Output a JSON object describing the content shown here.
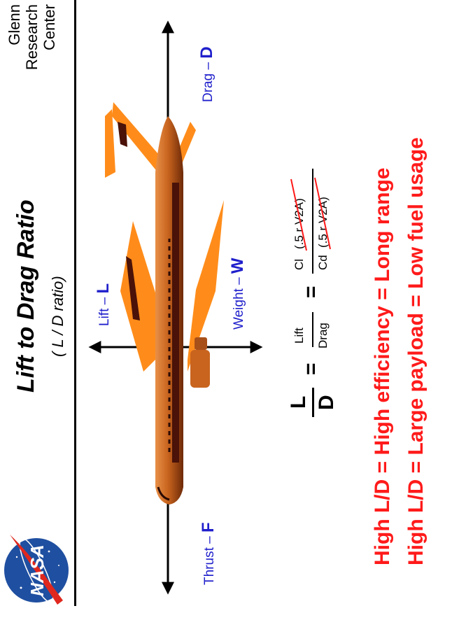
{
  "center_name": "Glenn Research Center",
  "title": "Lift  to  Drag  Ratio",
  "subtitle": "( L / D  ratio)",
  "forces": {
    "drag": {
      "word": "Drag",
      "symbol": "D"
    },
    "lift": {
      "word": "Lift",
      "symbol": "L"
    },
    "weight": {
      "word": "Weight",
      "symbol": "W"
    },
    "thrust": {
      "word": "Thrust",
      "symbol": "F"
    }
  },
  "equation": {
    "ld_num": "L",
    "ld_den": "D",
    "equals": "=",
    "word_num": "Lift",
    "word_den": "Drag",
    "coef_num": "Cl",
    "coef_den": "Cd",
    "cancel_term": "(.5 r V2A)"
  },
  "statements": [
    {
      "left": "High  L/D",
      "eq": "=",
      "middle": "High efficiency",
      "right": "Long  range"
    },
    {
      "left": "High  L/D",
      "eq": "=",
      "middle": "Large  payload",
      "right": "Low  fuel  usage"
    }
  ],
  "colors": {
    "aircraft_body": "#c8641e",
    "aircraft_wing": "#ff8c1a",
    "aircraft_stripe": "#4a1208",
    "force_label": "#1f1fcc",
    "statement": "#ff1a1a",
    "nasa_blue": "#1f4fa0",
    "nasa_red": "#e0281e"
  },
  "logo_text": "NASA"
}
